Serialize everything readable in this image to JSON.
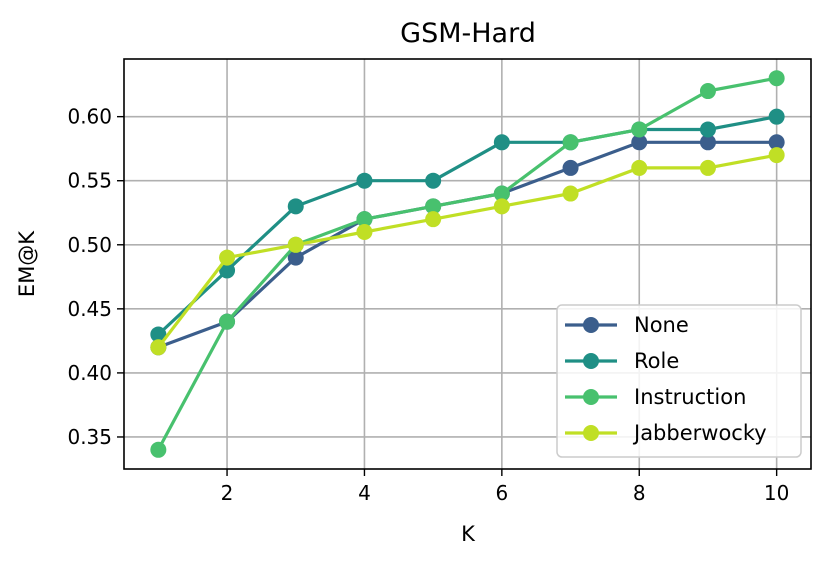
{
  "chart_data": {
    "type": "line",
    "title": "GSM-Hard",
    "xlabel": "K",
    "ylabel": "EM@K",
    "x": [
      1,
      2,
      3,
      4,
      5,
      6,
      7,
      8,
      9,
      10
    ],
    "xlim": [
      0.5,
      10.5
    ],
    "ylim": [
      0.325,
      0.645
    ],
    "xticks": [
      2,
      4,
      6,
      8,
      10
    ],
    "yticks": [
      0.35,
      0.4,
      0.45,
      0.5,
      0.55,
      0.6
    ],
    "ytick_labels": [
      "0.35",
      "0.40",
      "0.45",
      "0.50",
      "0.55",
      "0.60"
    ],
    "grid": true,
    "legend_position": "lower-right",
    "series": [
      {
        "name": "None",
        "color": "#3b5e8c",
        "values": [
          0.42,
          0.44,
          0.49,
          0.52,
          0.53,
          0.54,
          0.56,
          0.58,
          0.58,
          0.58
        ]
      },
      {
        "name": "Role",
        "color": "#1f8f85",
        "values": [
          0.43,
          0.48,
          0.53,
          0.55,
          0.55,
          0.58,
          0.58,
          0.59,
          0.59,
          0.6
        ]
      },
      {
        "name": "Instruction",
        "color": "#48c16e",
        "values": [
          0.34,
          0.44,
          0.5,
          0.52,
          0.53,
          0.54,
          0.58,
          0.59,
          0.62,
          0.63
        ]
      },
      {
        "name": "Jabberwocky",
        "color": "#c0df25",
        "values": [
          0.42,
          0.49,
          0.5,
          0.51,
          0.52,
          0.53,
          0.54,
          0.56,
          0.56,
          0.57
        ]
      }
    ]
  }
}
